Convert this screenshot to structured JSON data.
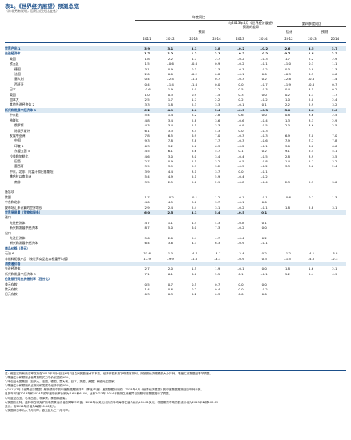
{
  "title": "表1。《世界经济展望》预测总览",
  "subtitle": "（除非另有说明，否则为百分比变化）",
  "header": {
    "yoy": "年度同比",
    "proj": "预测",
    "diff": "与2013年4月《世界经济展望》预测的差异",
    "q4": "第四季度同比",
    "est": "估计",
    "q4proj": "预测",
    "years_main": [
      "2011",
      "2012",
      "2013",
      "2014",
      "2013",
      "2014"
    ],
    "years_q4": [
      "2012",
      "2013",
      "2014"
    ]
  },
  "rows": [
    {
      "label": "世界产出 1",
      "v": [
        "3.9",
        "3.1",
        "3.1",
        "3.8",
        "–0.2",
        "–0.2",
        "2.6",
        "3.5",
        "3.7"
      ],
      "bold": true,
      "shade": true,
      "indent": 0
    },
    {
      "label": "先进经济体",
      "v": [
        "1.7",
        "1.2",
        "1.2",
        "2.1",
        "–0.2",
        "–0.2",
        "0.7",
        "1.8",
        "2.2"
      ],
      "bold": true,
      "indent": 0
    },
    {
      "label": "美国",
      "v": [
        "1.8",
        "2.2",
        "1.7",
        "2.7",
        "–0.2",
        "–0.3",
        "1.7",
        "2.2",
        "2.9"
      ],
      "indent": 1
    },
    {
      "label": "欧元区",
      "v": [
        "1.5",
        "–0.6",
        "–0.6",
        "0.9",
        "–0.2",
        "–0.1",
        "–1.0",
        "0.3",
        "1.1"
      ],
      "indent": 1
    },
    {
      "label": "德国",
      "v": [
        "3.1",
        "0.9",
        "0.3",
        "1.3",
        "–0.3",
        "–0.2",
        "0.3",
        "0.9",
        "1.3"
      ],
      "indent": 2
    },
    {
      "label": "法国",
      "v": [
        "2.0",
        "0.0",
        "–0.2",
        "0.8",
        "–0.1",
        "0.0",
        "–0.3",
        "0.5",
        "0.6"
      ],
      "indent": 2
    },
    {
      "label": "意大利",
      "v": [
        "0.4",
        "–2.4",
        "–1.8",
        "0.7",
        "–0.3",
        "0.2",
        "–2.8",
        "–0.6",
        "1.4"
      ],
      "indent": 2
    },
    {
      "label": "西班牙",
      "v": [
        "0.4",
        "–1.4",
        "–1.6",
        "0.0",
        "0.0",
        "–0.7",
        "–1.9",
        "–0.6",
        "0.7"
      ],
      "indent": 2
    },
    {
      "label": "日本",
      "v": [
        "–0.6",
        "1.9",
        "2.0",
        "1.2",
        "0.5",
        "–0.3",
        "0.4",
        "3.5",
        "0.2"
      ],
      "indent": 1
    },
    {
      "label": "英国",
      "v": [
        "1.0",
        "0.3",
        "0.9",
        "1.5",
        "0.3",
        "0.0",
        "0.2",
        "1.1",
        "1.7"
      ],
      "indent": 1
    },
    {
      "label": "加拿大",
      "v": [
        "2.5",
        "1.7",
        "1.7",
        "2.2",
        "0.2",
        "–0.2",
        "1.0",
        "2.0",
        "2.4"
      ],
      "indent": 1
    },
    {
      "label": "其他先进经济体 2",
      "v": [
        "3.3",
        "1.8",
        "2.3",
        "3.3",
        "–0.1",
        "0.1",
        "2.2",
        "2.9",
        "3.2"
      ],
      "indent": 1
    },
    {
      "label": "新兴和发展中经济体 3",
      "v": [
        "6.2",
        "4.9",
        "5.0",
        "5.4",
        "–0.3",
        "–0.3",
        "5.0",
        "5.6",
        "5.6"
      ],
      "bold": true,
      "shade": true,
      "indent": 0
    },
    {
      "label": "中东欧",
      "v": [
        "5.4",
        "1.4",
        "2.2",
        "2.8",
        "0.6",
        "0.0",
        "0.8",
        "3.6",
        "2.5"
      ],
      "indent": 1
    },
    {
      "label": "独联体",
      "v": [
        "4.8",
        "3.4",
        "2.8",
        "3.6",
        "–0.6",
        "–0.4",
        "1.3",
        "3.3",
        "2.9"
      ],
      "indent": 1
    },
    {
      "label": "俄罗斯",
      "v": [
        "4.3",
        "3.4",
        "2.5",
        "3.3",
        "–0.9",
        "–0.5",
        "2.0",
        "3.6",
        "2.5"
      ],
      "indent": 2
    },
    {
      "label": "除俄罗斯外",
      "v": [
        "6.1",
        "3.3",
        "3.5",
        "4.3",
        "0.0",
        "–0.3",
        "",
        "",
        ""
      ],
      "indent": 2
    },
    {
      "label": "发展中亚洲",
      "v": [
        "7.8",
        "6.5",
        "6.9",
        "7.0",
        "–0.3",
        "–0.3",
        "6.9",
        "7.0",
        "7.0"
      ],
      "indent": 1
    },
    {
      "label": "中国",
      "v": [
        "9.3",
        "7.8",
        "7.8",
        "7.7",
        "–0.3",
        "–0.6",
        "7.9",
        "7.7",
        "7.8"
      ],
      "indent": 2
    },
    {
      "label": "印度 4",
      "v": [
        "6.3",
        "3.2",
        "5.6",
        "6.3",
        "–0.2",
        "–0.1",
        "3.0",
        "6.0",
        "6.6"
      ],
      "indent": 2
    },
    {
      "label": "东盟五国 5",
      "v": [
        "4.5",
        "6.1",
        "5.6",
        "5.7",
        "0.1",
        "0.2",
        "9.1",
        "5.5",
        "5.1"
      ],
      "indent": 2
    },
    {
      "label": "拉美和加勒比",
      "v": [
        "4.6",
        "3.0",
        "3.0",
        "3.4",
        "–0.4",
        "–0.5",
        "2.8",
        "3.9",
        "3.5"
      ],
      "indent": 1
    },
    {
      "label": "巴西",
      "v": [
        "2.7",
        "0.9",
        "2.5",
        "3.2",
        "–0.5",
        "–0.8",
        "1.4",
        "2.7",
        "3.2"
      ],
      "indent": 2
    },
    {
      "label": "墨西哥",
      "v": [
        "3.9",
        "3.9",
        "2.9",
        "3.2",
        "–0.5",
        "–0.2",
        "3.3",
        "3.6",
        "2.4"
      ],
      "indent": 2
    },
    {
      "label": "中东、北非、阿富汗和巴基斯坦",
      "v": [
        "3.9",
        "4.4",
        "3.1",
        "3.7",
        "0.0",
        "–0.1",
        "",
        "",
        ""
      ],
      "indent": 1
    },
    {
      "label": "撒哈拉以南非洲",
      "v": [
        "5.4",
        "4.9",
        "5.1",
        "5.9",
        "–0.4",
        "–0.2",
        "",
        "",
        ""
      ],
      "indent": 1
    },
    {
      "label": "南非",
      "v": [
        "3.5",
        "2.5",
        "2.0",
        "2.9",
        "–0.8",
        "–0.4",
        "2.3",
        "2.3",
        "3.0"
      ],
      "indent": 2
    },
    {
      "label": "",
      "v": [
        "",
        "",
        "",
        "",
        "",
        "",
        "",
        "",
        ""
      ],
      "indent": 0
    },
    {
      "label": "备忘项",
      "v": [
        "",
        "",
        "",
        "",
        "",
        "",
        "",
        "",
        ""
      ],
      "indent": 0
    },
    {
      "label": "欧盟",
      "v": [
        "1.7",
        "–0.2",
        "–0.1",
        "1.2",
        "–0.1",
        "–0.1",
        "–0.6",
        "0.7",
        "1.3"
      ],
      "indent": 0
    },
    {
      "label": "中东和北非",
      "v": [
        "4.0",
        "4.5",
        "3.0",
        "3.7",
        "–0.1",
        "0.0",
        "",
        "",
        ""
      ],
      "indent": 0
    },
    {
      "label": "按市场汇率计算的世界增长",
      "v": [
        "2.9",
        "2.4",
        "2.4",
        "3.1",
        "–0.2",
        "–0.1",
        "1.8",
        "2.8",
        "3.1"
      ],
      "indent": 0
    },
    {
      "label": "世界贸易量（货物和服务）",
      "v": [
        "6.0",
        "2.5",
        "3.1",
        "5.4",
        "–0.5",
        "0.1",
        "",
        "",
        ""
      ],
      "bold": true,
      "shade": true,
      "indent": 0
    },
    {
      "label": "进口",
      "v": [
        "",
        "",
        "",
        "",
        "",
        "",
        "",
        "",
        ""
      ],
      "indent": 0
    },
    {
      "label": "先进经济体",
      "v": [
        "4.7",
        "1.1",
        "1.4",
        "4.3",
        "–0.8",
        "0.1",
        "",
        "",
        ""
      ],
      "indent": 1
    },
    {
      "label": "新兴和发展中经济体",
      "v": [
        "8.7",
        "5.0",
        "6.0",
        "7.3",
        "–0.2",
        "0.0",
        "",
        "",
        ""
      ],
      "indent": 1
    },
    {
      "label": "出口",
      "v": [
        "",
        "",
        "",
        "",
        "",
        "",
        "",
        "",
        ""
      ],
      "indent": 0
    },
    {
      "label": "先进经济体",
      "v": [
        "5.6",
        "2.0",
        "2.4",
        "4.7",
        "–0.4",
        "0.2",
        "",
        "",
        ""
      ],
      "indent": 1
    },
    {
      "label": "新兴和发展中经济体",
      "v": [
        "6.4",
        "3.6",
        "4.3",
        "6.3",
        "–0.9",
        "–0.1",
        "",
        "",
        ""
      ],
      "indent": 1
    },
    {
      "label": "商品价格（美元）",
      "v": [
        "",
        "",
        "",
        "",
        "",
        "",
        "",
        "",
        ""
      ],
      "bold": true,
      "indent": 0
    },
    {
      "label": "石油 6",
      "v": [
        "31.6",
        "1.0",
        "–4.7",
        "–4.7",
        "–2.4",
        "0.2",
        "–1.2",
        "–4.1",
        "–3.8"
      ],
      "indent": 0
    },
    {
      "label": "非燃料初级产品（按世界商品出口权重平均值）",
      "v": [
        "17.9",
        "–9.9",
        "–1.8",
        "–4.3",
        "–0.9",
        "0.3",
        "–1.5",
        "–4.5",
        "–2.3"
      ],
      "indent": 0
    },
    {
      "label": "消费者价格",
      "v": [
        "",
        "",
        "",
        "",
        "",
        "",
        "",
        "",
        ""
      ],
      "bold": true,
      "shade": true,
      "indent": 0
    },
    {
      "label": "先进经济体",
      "v": [
        "2.7",
        "2.0",
        "1.5",
        "1.9",
        "–0.1",
        "0.0",
        "1.8",
        "1.6",
        "2.1"
      ],
      "indent": 0
    },
    {
      "label": "新兴和发展中经济体 3",
      "v": [
        "7.1",
        "6.1",
        "6.0",
        "5.5",
        "0.1",
        "–0.1",
        "5.2",
        "5.4",
        "4.9"
      ],
      "indent": 0
    },
    {
      "label": "伦敦银行同业拆借利率（百分比）",
      "v": [
        "",
        "",
        "",
        "",
        "",
        "",
        "",
        "",
        ""
      ],
      "bold": true,
      "indent": 0
    },
    {
      "label": "美元存款",
      "v": [
        "0.5",
        "0.7",
        "0.5",
        "0.7",
        "0.0",
        "0.0",
        "",
        "",
        ""
      ],
      "indent": 0
    },
    {
      "label": "欧元存款",
      "v": [
        "1.4",
        "0.6",
        "0.2",
        "0.4",
        "0.0",
        "–0.2",
        "",
        "",
        ""
      ],
      "indent": 0
    },
    {
      "label": "日元存款",
      "v": [
        "0.3",
        "0.3",
        "0.2",
        "0.3",
        "0.0",
        "0.0",
        "",
        "",
        ""
      ],
      "indent": 0
    }
  ],
  "notes": [
    "注：假定实际有效汇率保持在2013年5月6日至6月3日之间的普遍水平不变。经济体若未按字母顺序排列，则按照经济规模的大小排列。季度汇总数据经季节调整。",
    "1/季度估计和预测占世界按购买力平价权重的90%。",
    "2/不包括七国集团（加拿大、法国、德国、意大利、日本、英国、美国）和欧元区国家。",
    "3/季度估计和预测约占新兴和发展中经济体的80%。",
    "4/2013/7月《世界经济展望》最新预测中的印度数据是按财年（季度/年度）度报数据列示的。2013年4月《世界经济展望》的印度数据是按日历年列示的。",
    "日历年 印度2013年和2014年的年度增长率分别为5.6%和6.3%，此前2013年-2014年预测之间差异已按照可用数据进行了调整。",
    "5/印度尼西亚、马来西亚、菲律宾、泰国和越南。",
    "6/英国布伦特、迪拜和西得克萨斯中质原油价格的简单平均值。2012年以美元计价的平均每桶石油价格为105.01美元；根据期货市场的假设价格为2013年每桶100.09",
    "美元，而2014年价格为每桶96.36美元。",
    "7/美国和日本为六个月利率，欧元区为三个月利率。"
  ]
}
